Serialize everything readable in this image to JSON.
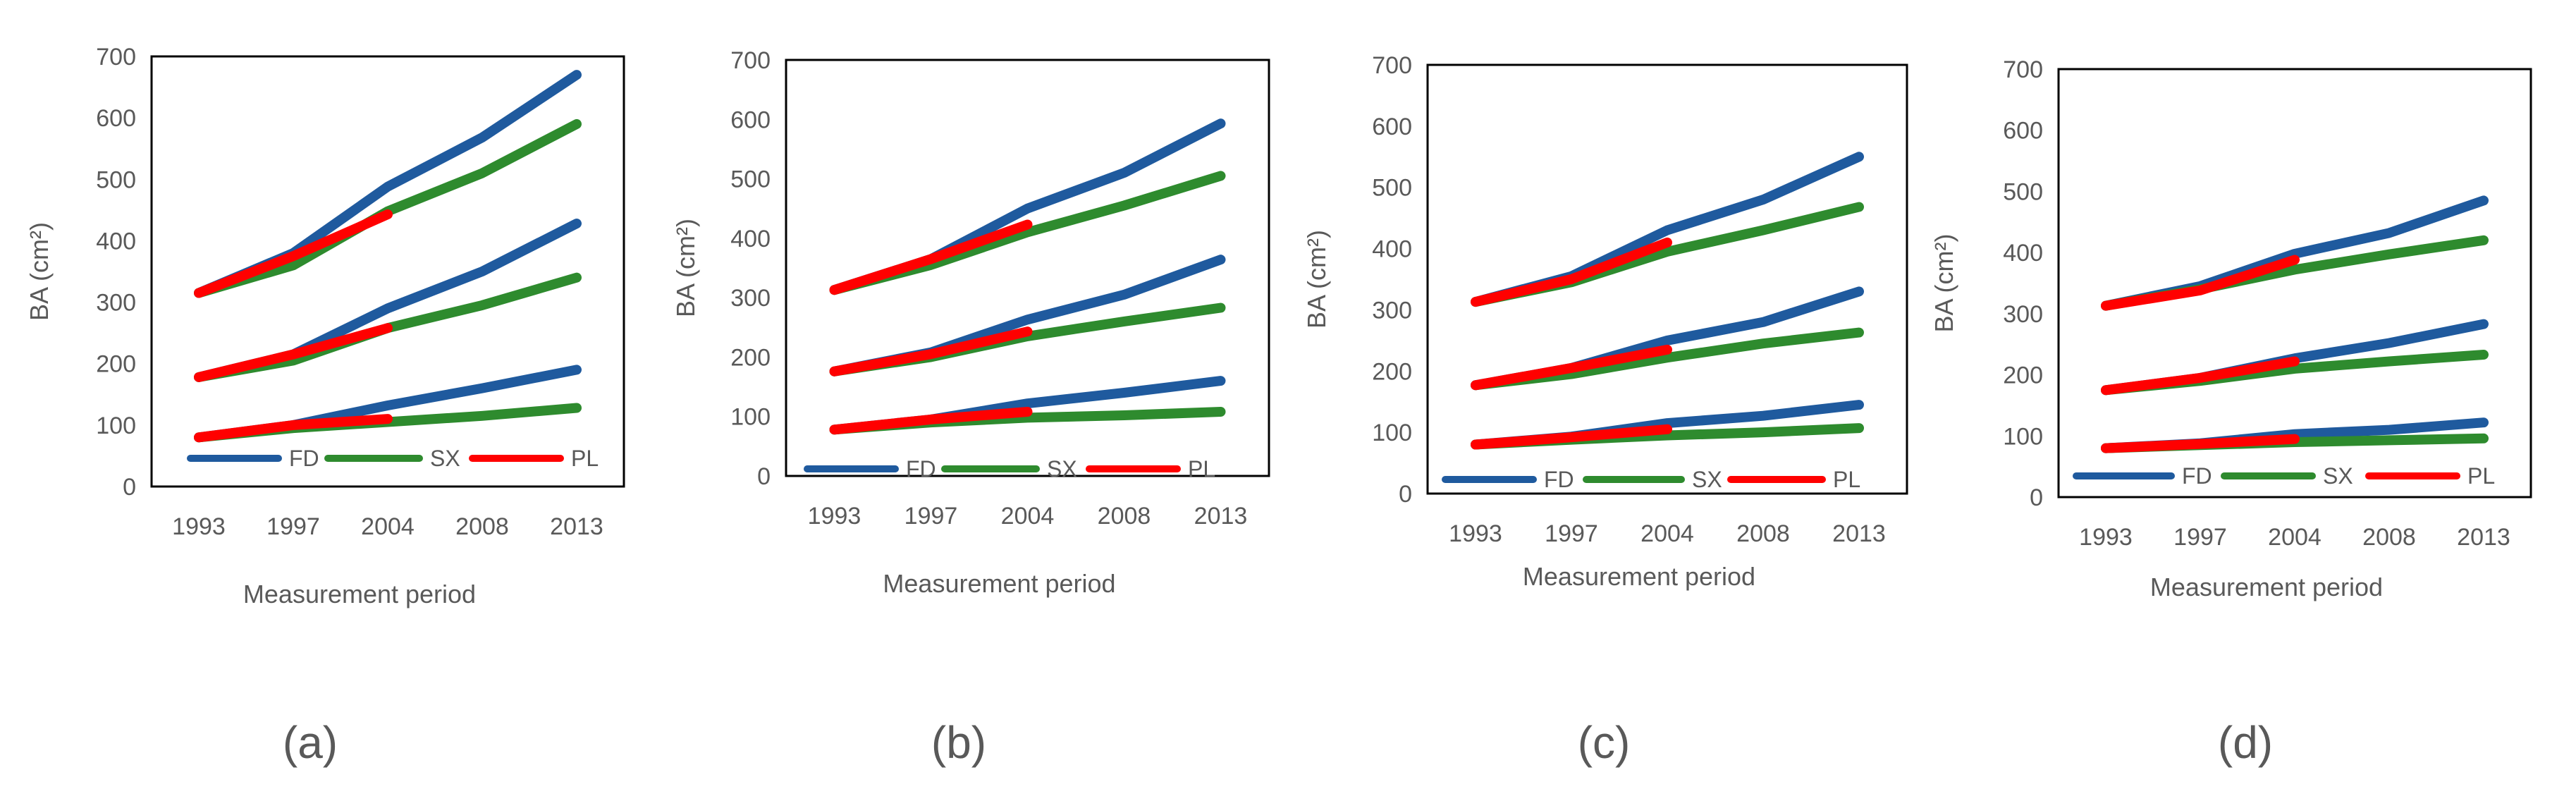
{
  "series_colors": {
    "FD": "#1F5A9E",
    "SX": "#2E8B2E",
    "PL": "#FF0000"
  },
  "chart_data": [
    {
      "type": "line",
      "caption": "(a)",
      "x": [
        "1993",
        "1997",
        "2004",
        "2008",
        "2013"
      ],
      "ylim": [
        0,
        700
      ],
      "yticks": [
        "0",
        "100",
        "200",
        "300",
        "400",
        "500",
        "600",
        "700"
      ],
      "ylabel": "BA (cm²)",
      "xlabel": "Measurement period",
      "legend": [
        "FD",
        "SX",
        "PL"
      ],
      "series": [
        {
          "name": "FD",
          "values": [
            315,
            380,
            488,
            568,
            670
          ]
        },
        {
          "name": "SX",
          "values": [
            315,
            360,
            448,
            510,
            590
          ]
        },
        {
          "name": "PL",
          "values": [
            315,
            375,
            443,
            null,
            null
          ]
        },
        {
          "name": "FD",
          "values": [
            178,
            215,
            290,
            350,
            428
          ]
        },
        {
          "name": "SX",
          "values": [
            178,
            205,
            258,
            295,
            340
          ]
        },
        {
          "name": "PL",
          "values": [
            178,
            215,
            258,
            null,
            null
          ]
        },
        {
          "name": "FD",
          "values": [
            80,
            100,
            132,
            160,
            190
          ]
        },
        {
          "name": "SX",
          "values": [
            80,
            95,
            105,
            115,
            128
          ]
        },
        {
          "name": "PL",
          "values": [
            80,
            100,
            110,
            null,
            null
          ]
        }
      ]
    },
    {
      "type": "line",
      "caption": "(b)",
      "x": [
        "1993",
        "1997",
        "2004",
        "2008",
        "2013"
      ],
      "ylim": [
        0,
        700
      ],
      "yticks": [
        "0",
        "100",
        "200",
        "300",
        "400",
        "500",
        "600",
        "700"
      ],
      "ylabel": "BA (cm²)",
      "xlabel": "Measurement period",
      "legend": [
        "FD",
        "SX",
        "PL"
      ],
      "series": [
        {
          "name": "FD",
          "values": [
            313,
            365,
            450,
            510,
            593
          ]
        },
        {
          "name": "SX",
          "values": [
            313,
            355,
            410,
            455,
            505
          ]
        },
        {
          "name": "PL",
          "values": [
            313,
            365,
            423,
            null,
            null
          ]
        },
        {
          "name": "FD",
          "values": [
            176,
            208,
            263,
            305,
            364
          ]
        },
        {
          "name": "SX",
          "values": [
            176,
            200,
            235,
            260,
            283
          ]
        },
        {
          "name": "PL",
          "values": [
            176,
            205,
            243,
            null,
            null
          ]
        },
        {
          "name": "FD",
          "values": [
            78,
            95,
            122,
            140,
            160
          ]
        },
        {
          "name": "SX",
          "values": [
            78,
            90,
            98,
            102,
            108
          ]
        },
        {
          "name": "PL",
          "values": [
            78,
            95,
            108,
            null,
            null
          ]
        }
      ]
    },
    {
      "type": "line",
      "caption": "(c)",
      "x": [
        "1993",
        "1997",
        "2004",
        "2008",
        "2013"
      ],
      "ylim": [
        0,
        700
      ],
      "yticks": [
        "0",
        "100",
        "200",
        "300",
        "400",
        "500",
        "600",
        "700"
      ],
      "ylabel": "BA (cm²)",
      "xlabel": "Measurement period",
      "legend": [
        "FD",
        "SX",
        "PL"
      ],
      "series": [
        {
          "name": "FD",
          "values": [
            313,
            355,
            430,
            480,
            550
          ]
        },
        {
          "name": "SX",
          "values": [
            313,
            345,
            395,
            430,
            468
          ]
        },
        {
          "name": "PL",
          "values": [
            313,
            350,
            410,
            null,
            null
          ]
        },
        {
          "name": "FD",
          "values": [
            177,
            205,
            250,
            280,
            330
          ]
        },
        {
          "name": "SX",
          "values": [
            177,
            195,
            222,
            245,
            263
          ]
        },
        {
          "name": "PL",
          "values": [
            177,
            205,
            235,
            null,
            null
          ]
        },
        {
          "name": "FD",
          "values": [
            80,
            93,
            115,
            127,
            145
          ]
        },
        {
          "name": "SX",
          "values": [
            80,
            88,
            95,
            100,
            107
          ]
        },
        {
          "name": "PL",
          "values": [
            80,
            92,
            105,
            null,
            null
          ]
        }
      ]
    },
    {
      "type": "line",
      "caption": "(d)",
      "x": [
        "1993",
        "1997",
        "2004",
        "2008",
        "2013"
      ],
      "ylim": [
        0,
        700
      ],
      "yticks": [
        "0",
        "100",
        "200",
        "300",
        "400",
        "500",
        "600",
        "700"
      ],
      "ylabel": "BA (cm²)",
      "xlabel": "Measurement period",
      "legend": [
        "FD",
        "SX",
        "PL"
      ],
      "series": [
        {
          "name": "FD",
          "values": [
            313,
            345,
            398,
            432,
            485
          ]
        },
        {
          "name": "SX",
          "values": [
            313,
            340,
            372,
            397,
            420
          ]
        },
        {
          "name": "PL",
          "values": [
            313,
            338,
            388,
            null,
            null
          ]
        },
        {
          "name": "FD",
          "values": [
            175,
            195,
            227,
            252,
            283
          ]
        },
        {
          "name": "SX",
          "values": [
            175,
            190,
            210,
            222,
            233
          ]
        },
        {
          "name": "PL",
          "values": [
            175,
            195,
            222,
            null,
            null
          ]
        },
        {
          "name": "FD",
          "values": [
            80,
            88,
            103,
            110,
            122
          ]
        },
        {
          "name": "SX",
          "values": [
            80,
            85,
            90,
            93,
            96
          ]
        },
        {
          "name": "PL",
          "values": [
            80,
            87,
            95,
            null,
            null
          ]
        }
      ]
    }
  ]
}
